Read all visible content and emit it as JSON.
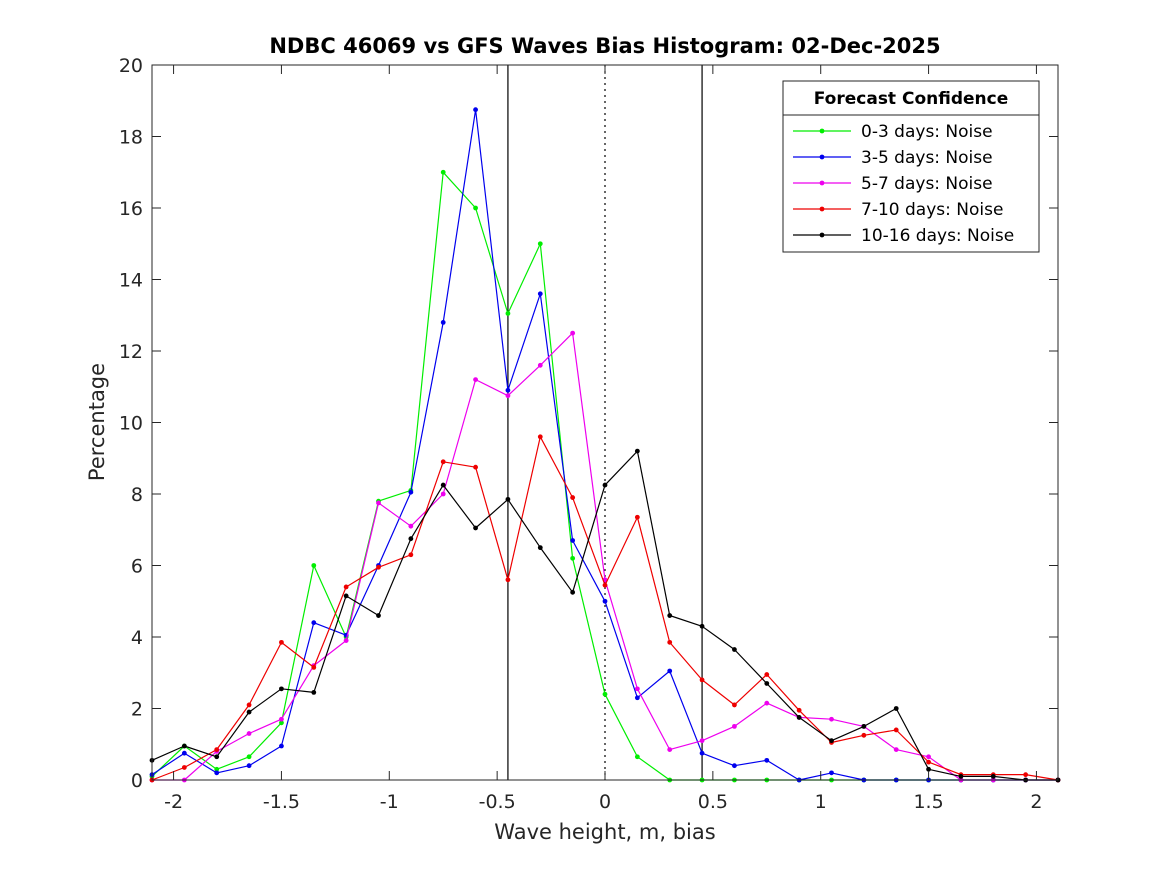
{
  "chart_data": {
    "type": "line",
    "title": "NDBC 46069 vs GFS Waves Bias Histogram: 02-Dec-2025",
    "xlabel": "Wave height, m, bias",
    "ylabel": "Percentage",
    "xlim": [
      -2.1,
      2.1
    ],
    "ylim": [
      0,
      20
    ],
    "xticks": [
      -2,
      -1.5,
      -1,
      -0.5,
      0,
      0.5,
      1,
      1.5,
      2
    ],
    "xtick_labels": [
      "-2",
      "-1.5",
      "-1",
      "-0.5",
      "0",
      "0.5",
      "1",
      "1.5",
      "2"
    ],
    "yticks": [
      0,
      2,
      4,
      6,
      8,
      10,
      12,
      14,
      16,
      18,
      20
    ],
    "ytick_labels": [
      "0",
      "2",
      "4",
      "6",
      "8",
      "10",
      "12",
      "14",
      "16",
      "18",
      "20"
    ],
    "grid": false,
    "reference_lines": [
      {
        "x": -0.45,
        "style": "solid",
        "color": "#000000"
      },
      {
        "x": 0,
        "style": "dotted",
        "color": "#000000"
      },
      {
        "x": 0.45,
        "style": "solid",
        "color": "#000000"
      }
    ],
    "legend": {
      "title": "Forecast Confidence",
      "location": "top-right"
    },
    "x": [
      -2.1,
      -1.95,
      -1.8,
      -1.65,
      -1.5,
      -1.35,
      -1.2,
      -1.05,
      -0.9,
      -0.75,
      -0.6,
      -0.45,
      -0.3,
      -0.15,
      0,
      0.15,
      0.3,
      0.45,
      0.6,
      0.75,
      0.9,
      1.05,
      1.2,
      1.35,
      1.5,
      1.65,
      1.8,
      1.95,
      2.1
    ],
    "series": [
      {
        "name": "0-3 days: Noise",
        "color": "#00ee00",
        "values": [
          0.1,
          0.95,
          0.3,
          0.65,
          1.6,
          6.0,
          4.0,
          7.8,
          8.1,
          17.0,
          16.0,
          13.05,
          15.0,
          6.2,
          2.4,
          0.65,
          0,
          0,
          0,
          0,
          0,
          0,
          0,
          0,
          0,
          0,
          0,
          0,
          0
        ]
      },
      {
        "name": "3-5 days: Noise",
        "color": "#0000ee",
        "values": [
          0.15,
          0.75,
          0.2,
          0.4,
          0.95,
          4.4,
          4.05,
          6.0,
          8.05,
          12.8,
          18.75,
          10.9,
          13.6,
          6.7,
          5.0,
          2.3,
          3.05,
          0.75,
          0.4,
          0.55,
          0,
          0.2,
          0,
          0,
          0,
          0,
          0,
          0,
          0
        ]
      },
      {
        "name": "5-7 days: Noise",
        "color": "#ee00ee",
        "values": [
          0,
          0,
          0.8,
          1.3,
          1.7,
          3.2,
          3.9,
          7.75,
          7.1,
          8.0,
          11.2,
          10.75,
          11.6,
          12.5,
          5.6,
          2.55,
          0.85,
          1.1,
          1.5,
          2.15,
          1.75,
          1.7,
          1.5,
          0.85,
          0.65,
          0,
          0,
          0,
          0
        ]
      },
      {
        "name": "7-10 days: Noise",
        "color": "#ee0000",
        "values": [
          0,
          0.35,
          0.85,
          2.1,
          3.85,
          3.15,
          5.4,
          5.95,
          6.3,
          8.9,
          8.75,
          5.6,
          9.6,
          7.9,
          5.45,
          7.35,
          3.85,
          2.8,
          2.1,
          2.95,
          1.95,
          1.05,
          1.25,
          1.4,
          0.5,
          0.15,
          0.15,
          0.15,
          0
        ]
      },
      {
        "name": "10-16 days: Noise",
        "color": "#000000",
        "values": [
          0.55,
          0.95,
          0.65,
          1.9,
          2.55,
          2.45,
          5.15,
          4.6,
          6.75,
          8.25,
          7.05,
          7.85,
          6.5,
          5.25,
          8.25,
          9.2,
          4.6,
          4.3,
          3.65,
          2.7,
          1.75,
          1.1,
          1.5,
          2.0,
          0.3,
          0.1,
          0.1,
          0,
          0
        ]
      }
    ]
  }
}
